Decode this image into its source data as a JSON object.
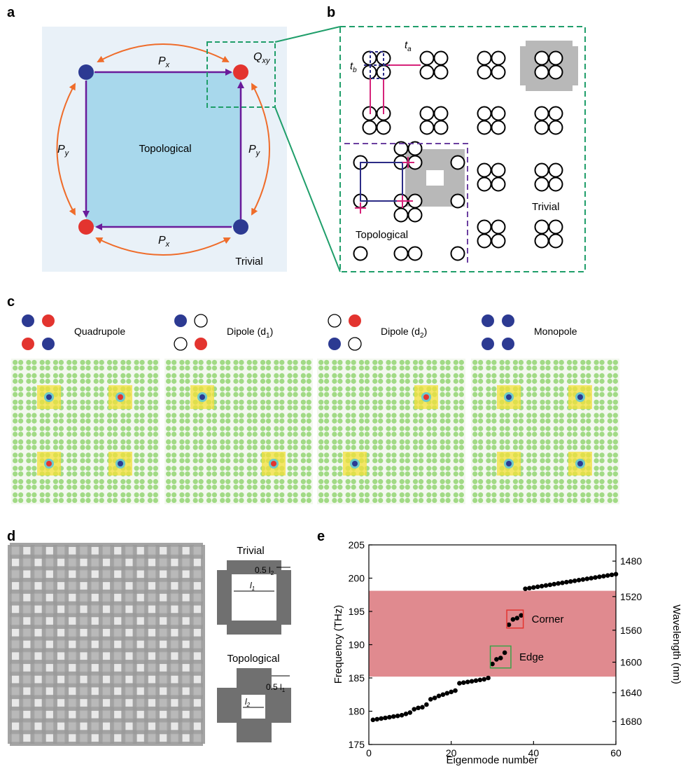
{
  "panel_letters": [
    "a",
    "b",
    "c",
    "d",
    "e"
  ],
  "panel_a": {
    "px_top": "P",
    "px_top_sub": "x",
    "px_bottom": "P",
    "px_bottom_sub": "x",
    "py_left": "P",
    "py_left_sub": "y",
    "py_right": "P",
    "py_right_sub": "y",
    "qxy": "Q",
    "qxy_sub": "xy",
    "topological": "Topological",
    "trivial": "Trivial",
    "colors": {
      "background": "#e9f1f8",
      "square": "#a8d8ec",
      "arrow": "#6a1b9a",
      "orange": "#ef6c2a",
      "blue": "#2c3a92",
      "red": "#e3342f"
    }
  },
  "panel_b": {
    "ta": "t",
    "ta_sub": "a",
    "tb": "t",
    "tb_sub": "b",
    "topological": "Topological",
    "trivial": "Trivial",
    "colors": {
      "green_dash": "#1f9e6a",
      "purple_dash": "#6b3fa0",
      "magenta": "#d6237a",
      "navy": "#2c2c86",
      "gray": "#b8b8b8"
    }
  },
  "panel_c": {
    "legends": [
      "Quadrupole",
      "Dipole (d",
      "Dipole (d",
      "Monopole"
    ],
    "legend_subs": [
      "",
      "1",
      "2",
      ""
    ],
    "legend_suffix": [
      "",
      ")",
      ")",
      ""
    ],
    "dot_patterns": [
      [
        "blue",
        "red",
        "red",
        "blue"
      ],
      [
        "blue",
        "empty",
        "empty",
        "red"
      ],
      [
        "empty",
        "red",
        "blue",
        "empty"
      ],
      [
        "blue",
        "blue",
        "blue",
        "blue"
      ]
    ],
    "colors": {
      "blue": "#2c3a92",
      "red": "#e3342f",
      "field_green": "#8cd26a",
      "field_yellow": "#f4e03a"
    }
  },
  "panel_d": {
    "trivial": "Trivial",
    "topological": "Topological",
    "trivial_dim": "0.5 l",
    "trivial_dim_sub": "2",
    "trivial_inner": "l",
    "trivial_inner_sub": "1",
    "topo_dim": "0.5 l",
    "topo_dim_sub": "1",
    "topo_inner": "l",
    "topo_inner_sub": "2",
    "colors": {
      "dark": "#707070",
      "sem_light": "#e8e8e8",
      "sem_dark": "#9a9a9a"
    }
  },
  "chart_data": {
    "type": "scatter",
    "xlabel": "Eigenmode number",
    "ylabel": "Frequency (THz)",
    "y2label": "Wavelength (nm)",
    "xlim": [
      0,
      60
    ],
    "ylim": [
      175,
      205
    ],
    "xticks": [
      0,
      20,
      40,
      60
    ],
    "yticks": [
      175,
      180,
      185,
      190,
      195,
      200,
      205
    ],
    "y2ticks": [
      1480,
      1520,
      1560,
      1600,
      1640,
      1680
    ],
    "band": [
      185.2,
      198.1
    ],
    "annotations": [
      {
        "label": "Corner",
        "x_range": [
          33.5,
          37.5
        ],
        "y_range": [
          192.5,
          195.2
        ]
      },
      {
        "label": "Edge",
        "x_range": [
          29.5,
          34.5
        ],
        "y_range": [
          186.5,
          189.8
        ]
      }
    ],
    "series": [
      {
        "x": [
          1,
          2,
          3,
          4,
          5,
          6,
          7,
          8,
          9,
          10,
          11,
          12,
          13,
          14,
          15,
          16,
          17,
          18,
          19,
          20,
          21,
          22,
          23,
          24,
          25,
          26,
          27,
          28,
          29,
          30,
          31,
          32,
          33,
          34,
          35,
          36,
          37,
          38,
          39,
          40,
          41,
          42,
          43,
          44,
          45,
          46,
          47,
          48,
          49,
          50,
          51,
          52,
          53,
          54,
          55,
          56,
          57,
          58,
          59,
          60
        ],
        "y": [
          178.7,
          178.8,
          178.9,
          179.0,
          179.1,
          179.2,
          179.3,
          179.4,
          179.6,
          179.8,
          180.3,
          180.5,
          180.6,
          181.0,
          181.8,
          182.0,
          182.3,
          182.5,
          182.7,
          182.9,
          183.1,
          184.2,
          184.3,
          184.4,
          184.5,
          184.6,
          184.7,
          184.8,
          185.0,
          187.1,
          187.8,
          188.0,
          188.8,
          193.0,
          193.8,
          194.0,
          194.4,
          198.4,
          198.5,
          198.6,
          198.7,
          198.8,
          198.9,
          199.0,
          199.1,
          199.2,
          199.3,
          199.4,
          199.5,
          199.6,
          199.7,
          199.8,
          199.9,
          200.0,
          200.1,
          200.2,
          200.3,
          200.4,
          200.5,
          200.6
        ]
      }
    ],
    "colors": {
      "band": "#e08a8f",
      "points": "#000000",
      "corner_box": "#e3342f",
      "edge_box": "#3aa24a"
    }
  }
}
